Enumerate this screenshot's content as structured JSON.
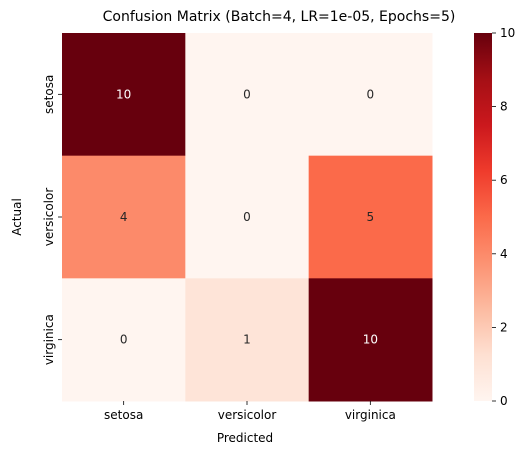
{
  "chart_data": {
    "type": "heatmap",
    "title": "Confusion Matrix (Batch=4, LR=1e-05, Epochs=5)",
    "xlabel": "Predicted",
    "ylabel": "Actual",
    "x_categories": [
      "setosa",
      "versicolor",
      "virginica"
    ],
    "y_categories": [
      "setosa",
      "versicolor",
      "virginica"
    ],
    "values": [
      [
        10,
        0,
        0
      ],
      [
        4,
        0,
        5
      ],
      [
        0,
        1,
        10
      ]
    ],
    "colorbar": {
      "range": [
        0,
        10
      ],
      "ticks": [
        "0",
        "2",
        "4",
        "6",
        "8",
        "10"
      ],
      "colormap": "Reds",
      "colormap_stops": [
        "#fff5f0",
        "#fee0d2",
        "#fcbba1",
        "#fc9272",
        "#fb6a4a",
        "#ef3b2c",
        "#cb181d",
        "#a50f15",
        "#67000d"
      ]
    }
  }
}
